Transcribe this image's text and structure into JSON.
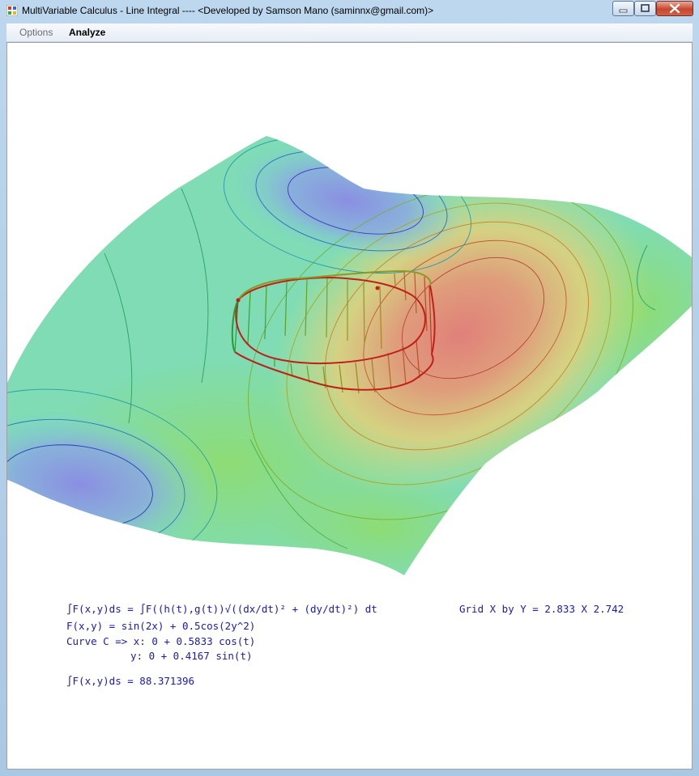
{
  "window": {
    "title": "MultiVariable Calculus - Line Integral ---- <Developed by Samson Mano (saminnx@gmail.com)>",
    "controls": {
      "minimize": "minimize",
      "maximize": "maximize",
      "close": "close"
    }
  },
  "menu": {
    "options": "Options",
    "analyze": "Analyze"
  },
  "info": {
    "formula_line": "∫F(x,y)ds = ∫F((h(t),g(t))√((dx/dt)² + (dy/dt)²) dt",
    "function_line": "F(x,y) = sin(2x) + 0.5cos(2y^2)",
    "curve_x_line": "Curve C => x: 0 + 0.5833 cos(t)",
    "curve_y_line": "y: 0 + 0.4167 sin(t)",
    "result_line": "∫F(x,y)ds = 88.371396",
    "grid_line": "Grid X by Y = 2.833 X 2.742"
  },
  "colors": {
    "text_blue": "#1a1ab4",
    "curve_red": "#c0201a",
    "curve_green": "#1aa03a",
    "surface_high": "#e2807c",
    "surface_mid": "#7cdbb0",
    "surface_low": "#8a8ee0"
  }
}
